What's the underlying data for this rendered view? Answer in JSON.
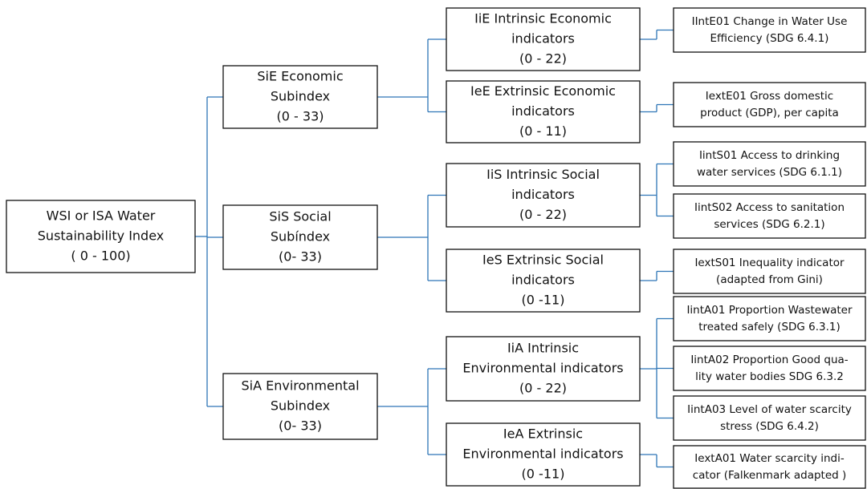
{
  "root": {
    "lines": [
      "WSI or ISA Water",
      "Sustainability Index",
      "( 0 - 100)"
    ],
    "subindices": [
      {
        "lines": [
          "SiE  Economic",
          "Subindex",
          "(0 - 33)"
        ],
        "indicators": [
          {
            "lines": [
              "IiE  Intrinsic Economic",
              "indicators",
              "(0 - 22)"
            ],
            "items": [
              {
                "lines": [
                  "IIntE01  Change in Water Use",
                  "Efficiency (SDG  6.4.1)"
                ]
              }
            ]
          },
          {
            "lines": [
              "IeE  Extrinsic Economic",
              "indicators",
              "(0 - 11)"
            ],
            "items": [
              {
                "lines": [
                  "IextE01   Gross domestic",
                  "product (GDP), per capita"
                ]
              }
            ]
          }
        ]
      },
      {
        "lines": [
          "SiS  Social",
          "Subíndex",
          "(0- 33)"
        ],
        "indicators": [
          {
            "lines": [
              "IiS  Intrinsic Social",
              "indicators",
              "(0 - 22)"
            ],
            "items": [
              {
                "lines": [
                  "IintS01  Access to drinking",
                  "water services (SDG  6.1.1)"
                ]
              },
              {
                "lines": [
                  "IintS02  Access to sanitation",
                  "services (SDG  6.2.1)"
                ]
              }
            ]
          },
          {
            "lines": [
              "IeS  Extrinsic Social",
              "indicators",
              "(0 -11)"
            ],
            "items": [
              {
                "lines": [
                  "IextS01  Inequality indicator",
                  "(adapted from Gini)"
                ]
              }
            ]
          }
        ]
      },
      {
        "lines": [
          "SiA  Environmental",
          "Subindex",
          "(0- 33)"
        ],
        "indicators": [
          {
            "lines": [
              "IiA  Intrinsic",
              "Environmental indicators",
              "(0 - 22)"
            ],
            "items": [
              {
                "lines": [
                  "IintA01 Proportion Wastewater",
                  "treated safely (SDG 6.3.1)"
                ]
              },
              {
                "lines": [
                  "IintA02 Proportion Good qua-",
                  "lity water bodies SDG  6.3.2"
                ]
              },
              {
                "lines": [
                  "IintA03  Level of water scarcity",
                  "stress  (SDG 6.4.2)"
                ]
              }
            ]
          },
          {
            "lines": [
              "IeA  Extrinsic",
              "Environmental indicators",
              "(0 -11)"
            ],
            "items": [
              {
                "lines": [
                  "IextA01  Water scarcity indi-",
                  "cator (Falkenmark adapted )"
                ]
              }
            ]
          }
        ]
      }
    ]
  }
}
